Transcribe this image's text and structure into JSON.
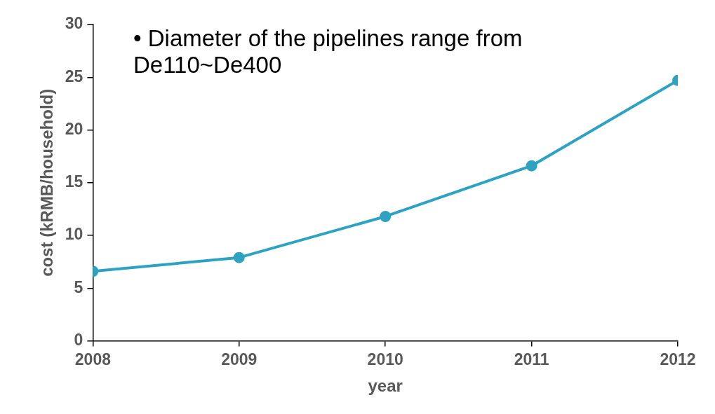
{
  "chart_data": {
    "type": "line",
    "xlabel": "year",
    "ylabel": "cost (kRMB/household)",
    "annotations": [
      "• Diameter of the pipelines range from De110~De400"
    ],
    "x": [
      2008,
      2009,
      2010,
      2011,
      2012
    ],
    "series": [
      {
        "color": "#2ea3c1",
        "values": [
          6.6,
          7.9,
          11.8,
          16.6,
          24.7
        ]
      }
    ],
    "xlim": [
      2008,
      2012
    ],
    "xticks": [
      2008,
      2009,
      2010,
      2011,
      2012
    ],
    "ylim": [
      0,
      30
    ],
    "yticks": [
      0,
      5,
      10,
      15,
      20,
      25,
      30
    ],
    "grid": false,
    "legend": false,
    "marker": "circle",
    "line_style": "solid"
  }
}
